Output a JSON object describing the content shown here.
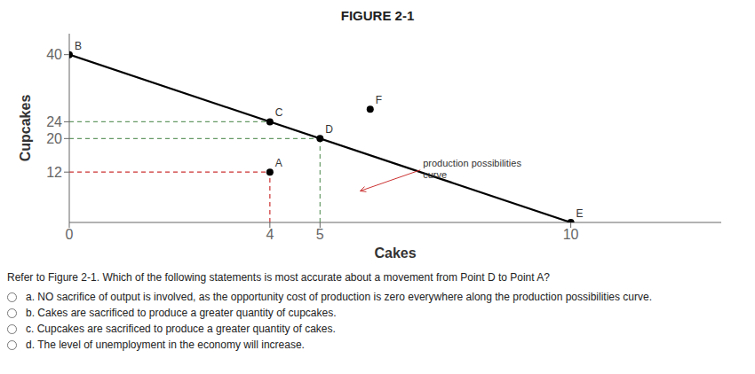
{
  "chart_data": {
    "type": "line",
    "title": "FIGURE 2-1",
    "x_label": "Cakes",
    "y_label": "Cupcakes",
    "xlim": [
      0,
      13
    ],
    "ylim": [
      0,
      45
    ],
    "xticks": [
      0,
      4,
      5,
      10
    ],
    "yticks": [
      12,
      20,
      24,
      40
    ],
    "grid": false,
    "series": [
      {
        "type": "line",
        "line_style": "solid",
        "color": "#000000",
        "x": [
          0,
          10
        ],
        "values": [
          40,
          0
        ]
      },
      {
        "type": "scatter",
        "marker": "circle",
        "color": "#000000",
        "x": [
          0,
          4,
          5,
          4,
          10,
          6
        ],
        "values": [
          40,
          24,
          20,
          12,
          0,
          27
        ],
        "point_labels": [
          "B",
          "C",
          "D",
          "A",
          "E",
          "F"
        ]
      },
      {
        "type": "line",
        "line_style": "dashed",
        "color": "#cc3333",
        "x": [
          4,
          4
        ],
        "values": [
          0,
          12
        ]
      },
      {
        "type": "line",
        "line_style": "dashed",
        "color": "#cc3333",
        "x": [
          0,
          4
        ],
        "values": [
          12,
          12
        ]
      },
      {
        "type": "line",
        "line_style": "dashed",
        "color": "#669966",
        "x": [
          5,
          5
        ],
        "values": [
          0,
          20
        ]
      },
      {
        "type": "line",
        "line_style": "dashed",
        "color": "#669966",
        "x": [
          0,
          5
        ],
        "values": [
          20,
          20
        ]
      },
      {
        "type": "line",
        "line_style": "dashed",
        "color": "#669966",
        "x": [
          0,
          4
        ],
        "values": [
          24,
          24
        ]
      }
    ],
    "annotations": [
      {
        "text": "production possibilities\ncurve",
        "x": 7.0,
        "y": 12.5,
        "arrow_x": 5.8,
        "arrow_y": 7.5,
        "color": "#cc3333"
      }
    ],
    "question": "Refer to Figure 2-1. Which of the following statements is most accurate about a movement from Point D to Point A?",
    "options": [
      "a. NO sacrifice of output is involved, as the opportunity cost of production is zero everywhere along the production possibilities curve.",
      "b. Cakes are sacrificed to produce a greater quantity of cupcakes.",
      "c. Cupcakes are sacrificed to produce a greater quantity of cakes.",
      "d. The level of unemployment in the economy will increase."
    ]
  }
}
